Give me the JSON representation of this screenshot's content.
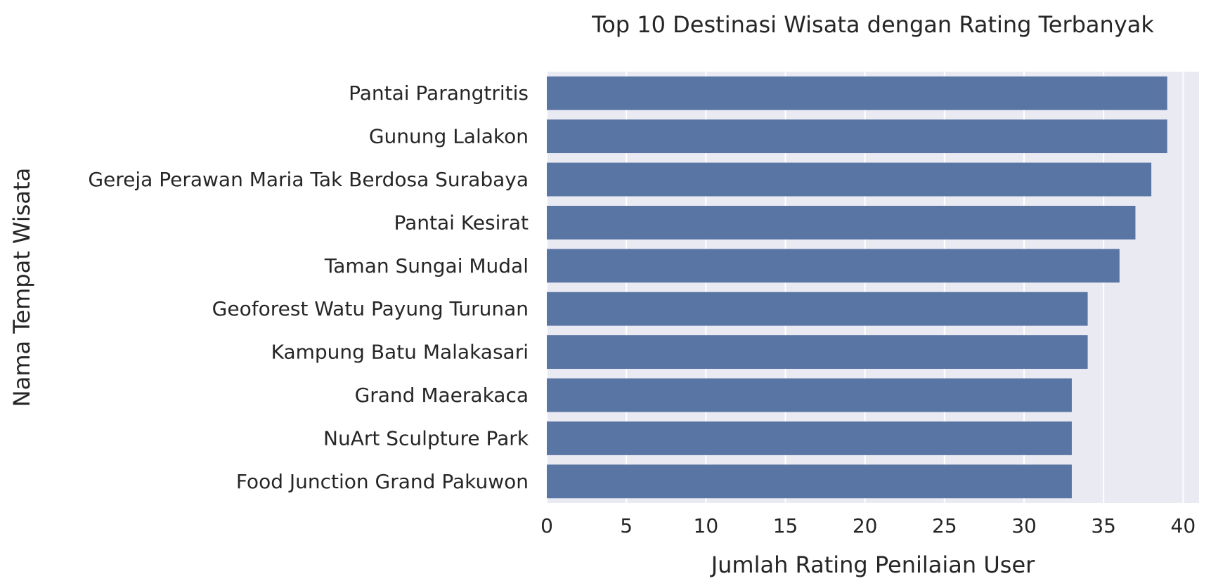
{
  "chart_data": {
    "type": "bar",
    "orientation": "horizontal",
    "title": "Top 10 Destinasi Wisata dengan Rating Terbanyak",
    "xlabel": "Jumlah Rating Penilaian User",
    "ylabel": "Nama Tempat Wisata",
    "categories": [
      "Pantai Parangtritis",
      "Gunung Lalakon",
      "Gereja Perawan Maria Tak Berdosa Surabaya",
      "Pantai Kesirat",
      "Taman Sungai Mudal",
      "Geoforest Watu Payung Turunan",
      "Kampung Batu Malakasari",
      "Grand Maerakaca",
      "NuArt Sculpture Park",
      "Food Junction Grand Pakuwon"
    ],
    "values": [
      39,
      39,
      38,
      37,
      36,
      34,
      34,
      33,
      33,
      33
    ],
    "xlim": [
      0,
      41
    ],
    "xticks": [
      0,
      5,
      10,
      15,
      20,
      25,
      30,
      35,
      40
    ],
    "grid": true,
    "legend": "none",
    "colors": {
      "bar": "#5975a4",
      "plot_background": "#eaeaf2",
      "grid": "#ffffff",
      "text": "#262626"
    }
  }
}
